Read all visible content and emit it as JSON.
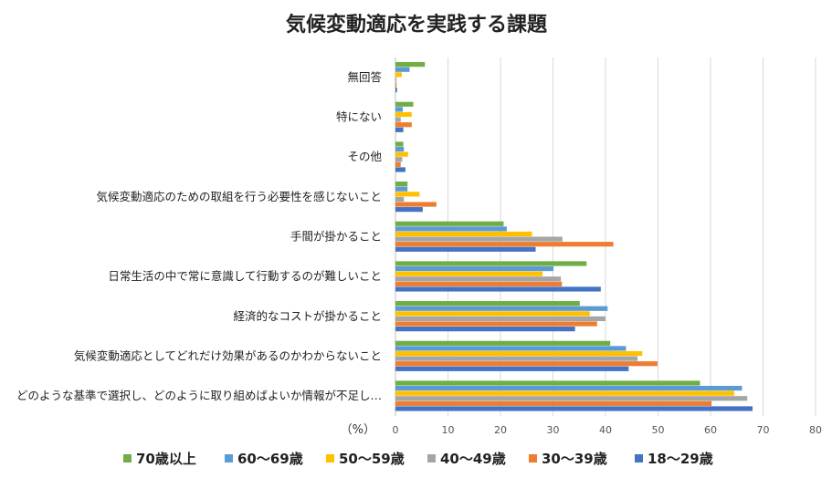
{
  "chart_data": {
    "type": "bar",
    "orientation": "horizontal",
    "title": "気候変動適応を実践する課題",
    "xlabel": "（%）",
    "xlim": [
      0,
      80
    ],
    "xticks": [
      "0",
      "10",
      "20",
      "30",
      "40",
      "50",
      "60",
      "70",
      "80"
    ],
    "grid": true,
    "legend_position": "bottom",
    "categories": [
      "無回答",
      "特にない",
      "その他",
      "気候変動適応のための取組を行う必要性を感じないこと",
      "手間が掛かること",
      "日常生活の中で常に意識して行動するのが難しいこと",
      "経済的なコストが掛かること",
      "気候変動適応としてどれだけ効果があるのかわからないこと",
      "どのような基準で選択し、どのように取り組めばよいか情報が不足し…"
    ],
    "series": [
      {
        "name": "70歳以上",
        "color": "#70AD47",
        "values": [
          5.6,
          3.4,
          1.5,
          2.3,
          20.6,
          36.4,
          35.1,
          40.9,
          58.0
        ]
      },
      {
        "name": "60～69歳",
        "color": "#5B9BD5",
        "values": [
          2.7,
          1.4,
          1.6,
          2.3,
          21.2,
          30.1,
          40.4,
          43.9,
          66.0
        ]
      },
      {
        "name": "50～59歳",
        "color": "#FFC000",
        "values": [
          1.2,
          3.1,
          2.4,
          4.6,
          26.0,
          28.0,
          37.0,
          47.0,
          64.5
        ]
      },
      {
        "name": "40～49歳",
        "color": "#A5A5A5",
        "values": [
          0.2,
          1.0,
          1.3,
          1.6,
          31.8,
          31.5,
          40.0,
          46.1,
          67.0
        ]
      },
      {
        "name": "30～39歳",
        "color": "#ED7D31",
        "values": [
          0.2,
          3.1,
          1.0,
          7.8,
          41.5,
          31.7,
          38.4,
          49.9,
          60.2
        ]
      },
      {
        "name": "18～29歳",
        "color": "#4472C4",
        "values": [
          0.3,
          1.5,
          1.9,
          5.2,
          26.7,
          39.1,
          34.2,
          44.4,
          68.0
        ]
      }
    ]
  }
}
